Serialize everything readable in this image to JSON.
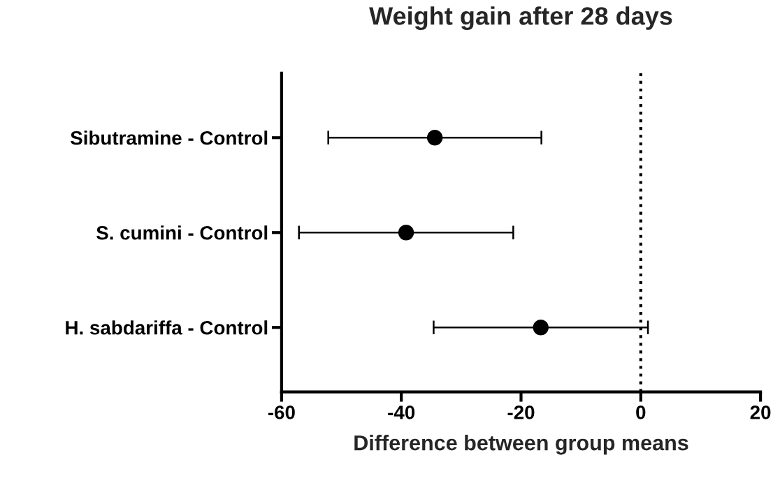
{
  "chart_data": {
    "type": "scatter",
    "orientation": "horizontal",
    "title": "Weight gain after 28 days",
    "xlabel": "Difference between group means",
    "categories": [
      "Sibutramine - Control",
      "S. cumini - Control",
      "H. sabdariffa - Control"
    ],
    "values": [
      -34.4,
      -39.2,
      -16.7
    ],
    "errors": [
      17.8,
      17.9,
      17.9
    ],
    "color": "#000000",
    "marker": "circle",
    "xlim": [
      -60,
      20
    ],
    "xticks": [
      -60,
      -40,
      -20,
      0,
      20
    ],
    "ref_lines": [
      {
        "axis": "x",
        "value": 0,
        "color": "#000000",
        "line_style": "dotted"
      }
    ],
    "grid": false,
    "legend": false
  }
}
